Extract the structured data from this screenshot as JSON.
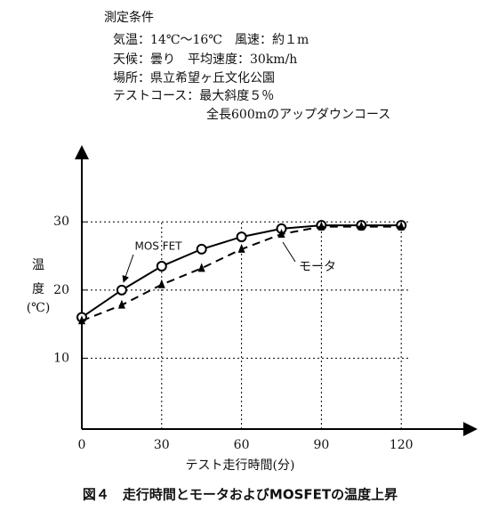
{
  "conditions": {
    "heading": "測定条件",
    "lines": [
      "気温：14℃～16℃　風速：約１m",
      "天候：曇り　平均速度：30km/h",
      "場所：県立希望ヶ丘文化公園",
      "テストコース：最大斜度５％",
      "全長600mのアップダウンコース"
    ]
  },
  "chart_data": {
    "type": "line",
    "x": [
      0,
      15,
      30,
      45,
      60,
      75,
      90,
      105,
      120
    ],
    "series": [
      {
        "name": "MOS FET",
        "color": "#000000",
        "marker": "circle",
        "dash": false,
        "values": [
          16,
          20,
          23.5,
          26,
          27.8,
          29,
          29.5,
          29.5,
          29.5
        ]
      },
      {
        "name": "モータ",
        "color": "#000000",
        "marker": "triangle",
        "dash": true,
        "values": [
          15.5,
          17.8,
          20.8,
          23.2,
          26,
          28.2,
          29.3,
          29.3,
          29.3
        ]
      }
    ],
    "xlim": [
      0,
      148
    ],
    "ylim": [
      0,
      41
    ],
    "xticks": [
      0,
      30,
      60,
      90,
      120
    ],
    "yticks": [
      10,
      20,
      30
    ],
    "grid": true,
    "ylabel": [
      "温",
      "度",
      "(℃)"
    ],
    "xlabel": "テスト走行時間(分)"
  },
  "caption": "図４　走行時間とモータおよびMOSFETの温度上昇"
}
